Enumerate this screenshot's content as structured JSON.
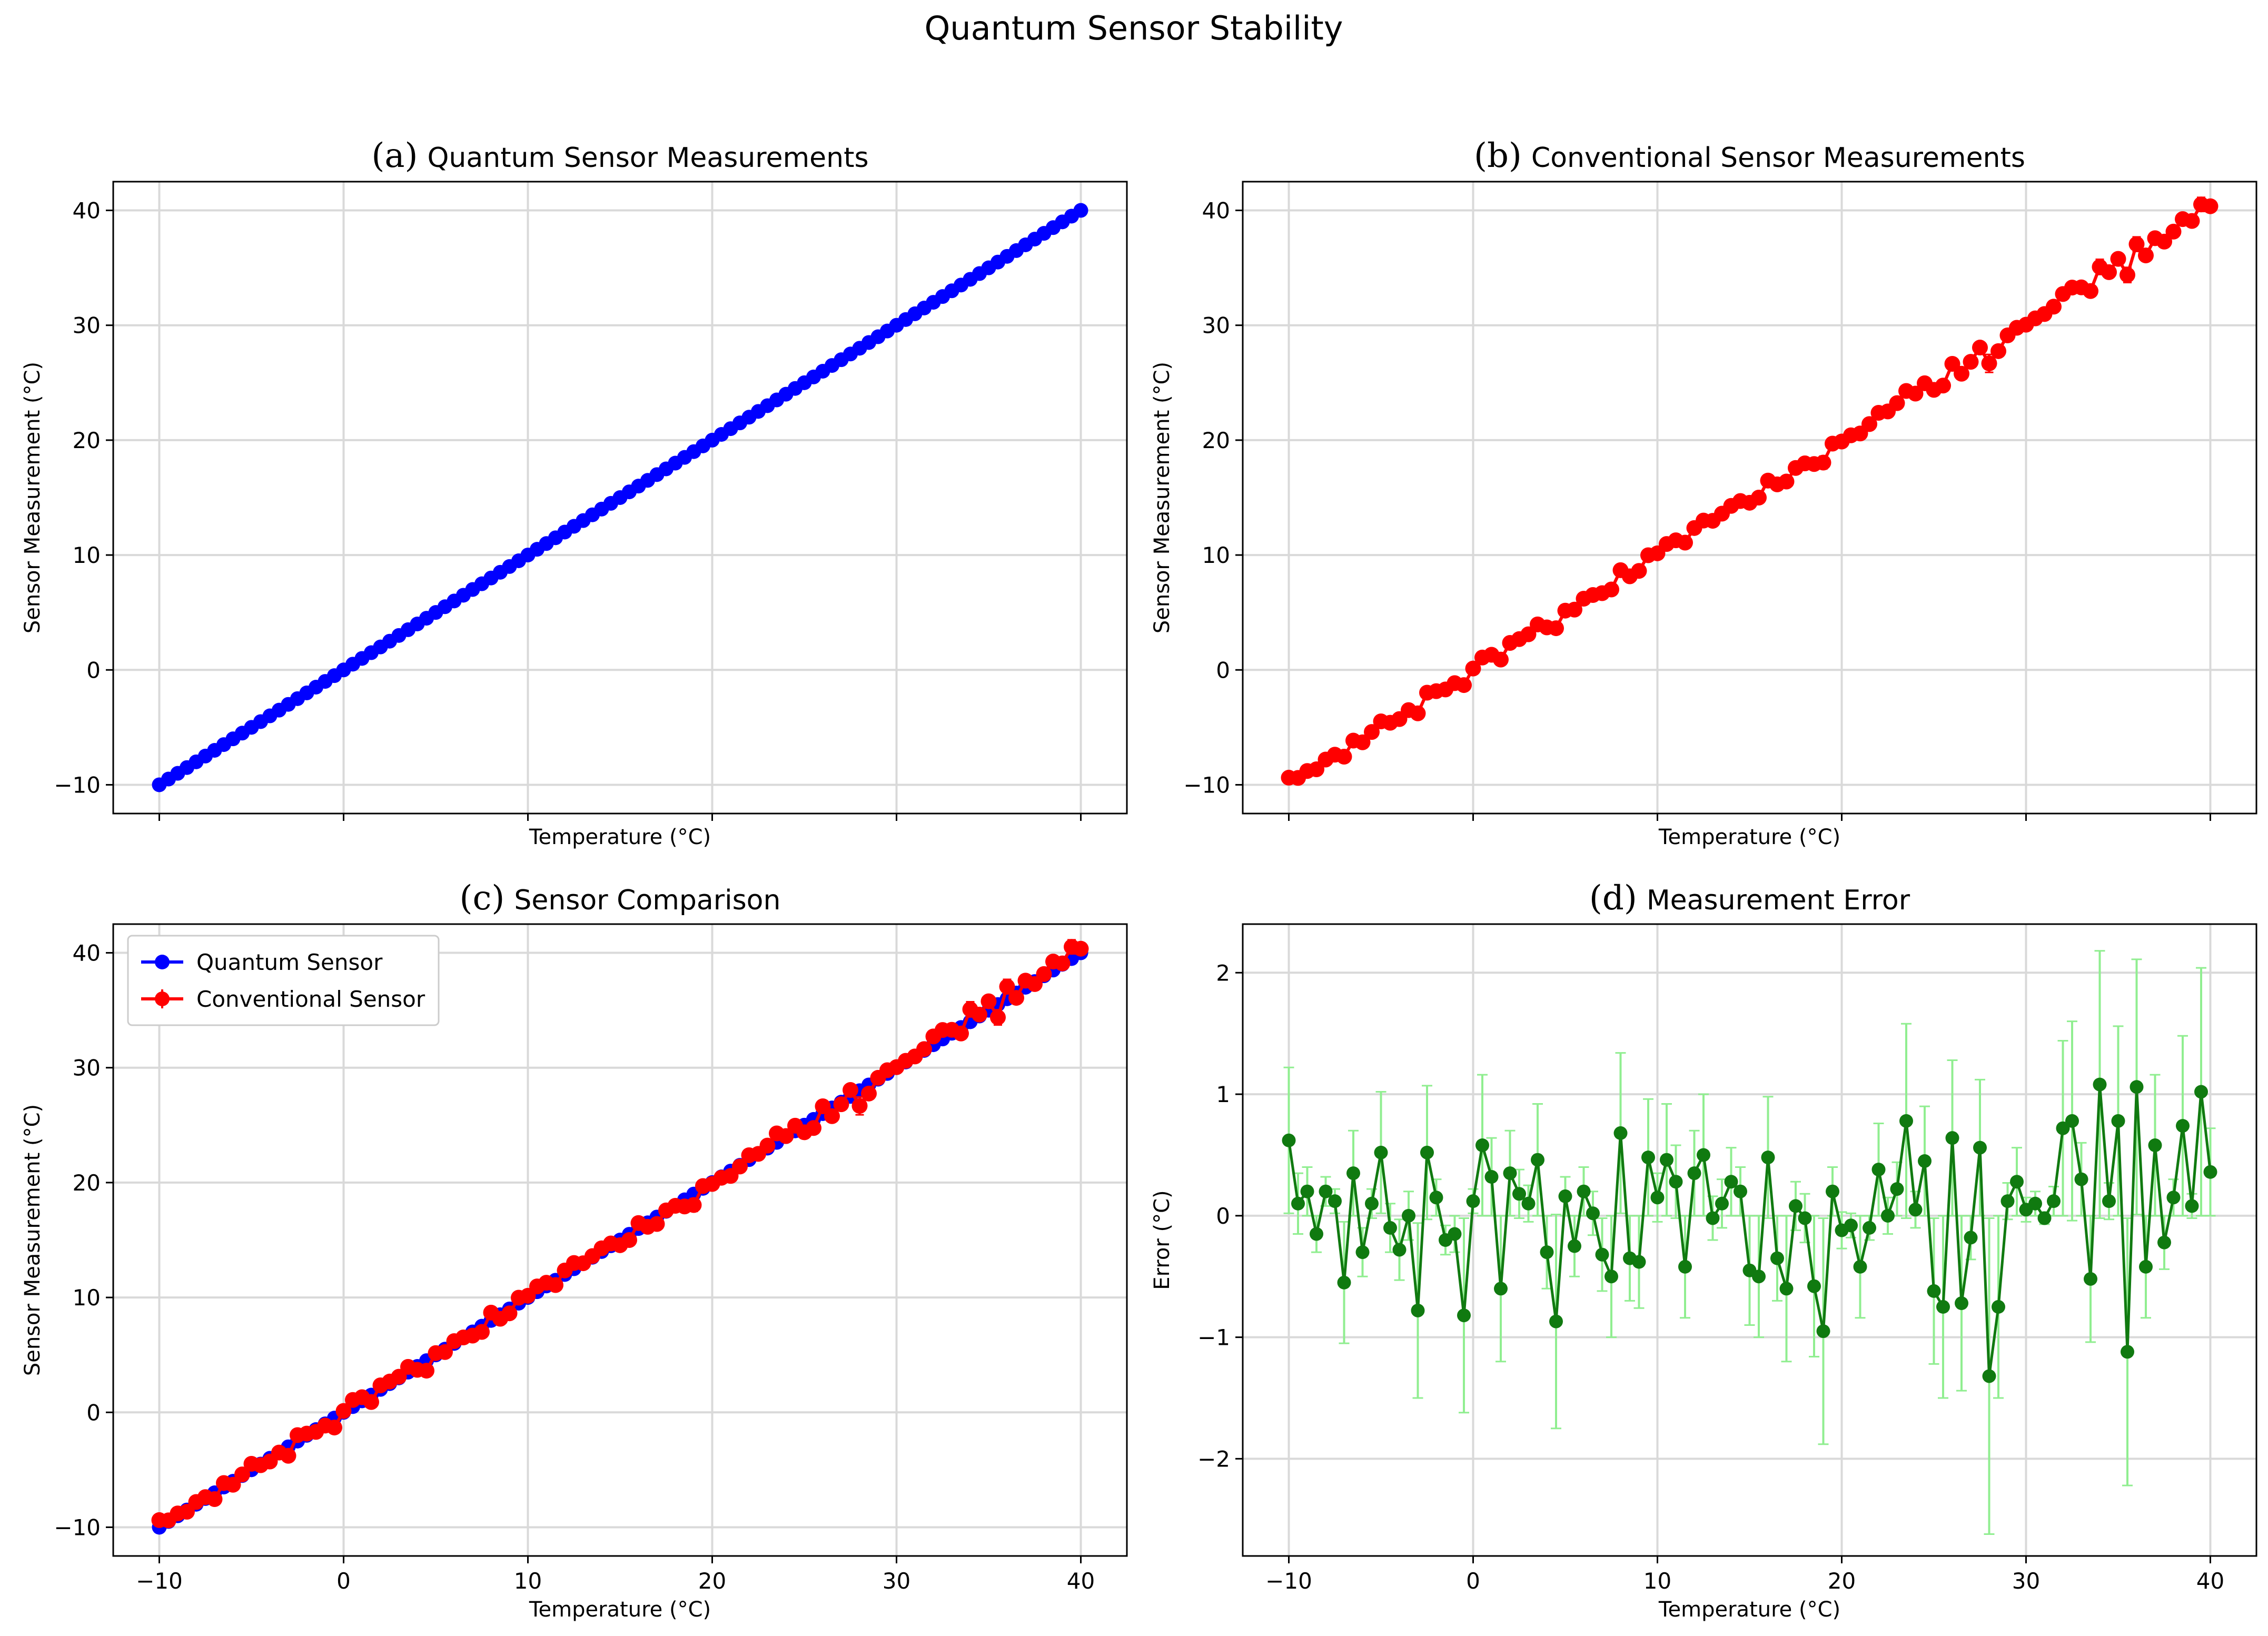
{
  "figure": {
    "suptitle": "Quantum Sensor Stability"
  },
  "colors": {
    "quantum": "#0000ff",
    "conventional": "#ff0000",
    "error_line": "#107a10",
    "error_bar": "#90ee90",
    "grid": "#d9d9d9"
  },
  "chart_data": [
    {
      "id": "a",
      "type": "line",
      "letter": "(a)",
      "title": "Quantum Sensor Measurements",
      "xlabel": "Temperature (°C)",
      "ylabel": "Sensor Measurement (°C)",
      "xlim": [
        -12.5,
        42.5
      ],
      "ylim": [
        -12.5,
        42.5
      ],
      "xticks": [
        -10,
        0,
        10,
        20,
        30,
        40
      ],
      "yticks": [
        -10,
        0,
        10,
        20,
        30,
        40
      ],
      "show_xtick_labels": false,
      "grid": true,
      "series": [
        {
          "key": "quantum",
          "x_range": [
            -10,
            40
          ],
          "points": 100,
          "y": "equal to x",
          "error": 0,
          "marker": "circle",
          "color": "#0000ff"
        }
      ]
    },
    {
      "id": "b",
      "type": "line",
      "letter": "(b)",
      "title": "Conventional Sensor Measurements",
      "xlabel": "Temperature (°C)",
      "ylabel": "Sensor Measurement (°C)",
      "xlim": [
        -12.5,
        42.5
      ],
      "ylim": [
        -12.5,
        42.5
      ],
      "xticks": [
        -10,
        0,
        10,
        20,
        30,
        40
      ],
      "yticks": [
        -10,
        0,
        10,
        20,
        30,
        40
      ],
      "show_xtick_labels": false,
      "grid": true,
      "series": [
        {
          "key": "conventional",
          "y": "x + measurement error (see panel d)",
          "marker": "circle",
          "color": "#ff0000"
        }
      ]
    },
    {
      "id": "c",
      "type": "line",
      "letter": "(c)",
      "title": "Sensor Comparison",
      "xlabel": "Temperature (°C)",
      "ylabel": "Sensor Measurement (°C)",
      "xlim": [
        -12.5,
        42.5
      ],
      "ylim": [
        -12.5,
        42.5
      ],
      "xticks": [
        -10,
        0,
        10,
        20,
        30,
        40
      ],
      "yticks": [
        -10,
        0,
        10,
        20,
        30,
        40
      ],
      "show_xtick_labels": true,
      "grid": true,
      "legend": {
        "position": "upper-left",
        "entries": [
          "Quantum Sensor",
          "Conventional Sensor"
        ]
      },
      "series": [
        {
          "name": "Quantum Sensor",
          "key": "quantum",
          "color": "#0000ff"
        },
        {
          "name": "Conventional Sensor",
          "key": "conventional",
          "color": "#ff0000"
        }
      ]
    },
    {
      "id": "d",
      "type": "line",
      "letter": "(d)",
      "title": "Measurement Error",
      "xlabel": "Temperature (°C)",
      "ylabel": "Error (°C)",
      "xlim": [
        -12.5,
        42.5
      ],
      "ylim": [
        -2.8,
        2.4
      ],
      "xticks": [
        -10,
        0,
        10,
        20,
        30,
        40
      ],
      "yticks": [
        -2,
        -1,
        0,
        1,
        2
      ],
      "show_xtick_labels": true,
      "grid": true,
      "series": [
        {
          "key": "error",
          "color": "#107a10",
          "errorbar_color": "#90ee90",
          "x": [
            -10.0,
            -9.5,
            -9.0,
            -8.5,
            -8.0,
            -7.5,
            -7.0,
            -6.5,
            -6.0,
            -5.5,
            -5.0,
            -4.5,
            -4.0,
            -3.5,
            -3.0,
            -2.5,
            -2.0,
            -1.5,
            -1.0,
            -0.5,
            0.0,
            0.5,
            1.0,
            1.5,
            2.0,
            2.5,
            3.0,
            3.5,
            4.0,
            4.5,
            5.0,
            5.5,
            6.0,
            6.5,
            7.0,
            7.5,
            8.0,
            8.5,
            9.0,
            9.5,
            10.0,
            10.5,
            11.0,
            11.5,
            12.0,
            12.5,
            13.0,
            13.5,
            14.0,
            14.5,
            15.0,
            15.5,
            16.0,
            16.5,
            17.0,
            17.5,
            18.0,
            18.5,
            19.0,
            19.5,
            20.0,
            20.5,
            21.0,
            21.5,
            22.0,
            22.5,
            23.0,
            23.5,
            24.0,
            24.5,
            25.0,
            25.5,
            26.0,
            26.5,
            27.0,
            27.5,
            28.0,
            28.5,
            29.0,
            29.5,
            30.0,
            30.5,
            31.0,
            31.5,
            32.0,
            32.5,
            33.0,
            33.5,
            34.0,
            34.5,
            35.0,
            35.5,
            36.0,
            36.5,
            37.0,
            37.5,
            38.0,
            38.5,
            39.0,
            39.5,
            40.0
          ],
          "values": [
            0.62,
            0.1,
            0.2,
            -0.15,
            0.2,
            0.12,
            -0.55,
            0.35,
            -0.3,
            0.1,
            0.52,
            -0.1,
            -0.28,
            0.0,
            -0.78,
            0.52,
            0.15,
            -0.2,
            -0.15,
            -0.82,
            0.12,
            0.58,
            0.32,
            -0.6,
            0.35,
            0.18,
            0.1,
            0.46,
            -0.3,
            -0.87,
            0.16,
            -0.25,
            0.2,
            0.02,
            -0.32,
            -0.5,
            0.68,
            -0.35,
            -0.38,
            0.48,
            0.15,
            0.46,
            0.28,
            -0.42,
            0.35,
            0.5,
            -0.02,
            0.1,
            0.28,
            0.2,
            -0.45,
            -0.5,
            0.48,
            -0.35,
            -0.6,
            0.08,
            -0.02,
            -0.58,
            -0.95,
            0.2,
            -0.12,
            -0.08,
            -0.42,
            -0.1,
            0.38,
            0.0,
            0.22,
            0.78,
            0.05,
            0.45,
            -0.62,
            -0.75,
            0.64,
            -0.72,
            -0.18,
            0.56,
            -1.32,
            -0.75,
            0.12,
            0.28,
            0.05,
            0.1,
            -0.02,
            0.12,
            0.72,
            0.78,
            0.3,
            -0.52,
            1.08,
            0.12,
            0.78,
            -1.12,
            1.06,
            -0.42,
            0.58,
            -0.22,
            0.15,
            0.74,
            0.08,
            1.02,
            0.36
          ],
          "errors": [
            0.6,
            0.25,
            0.2,
            0.15,
            0.12,
            0.1,
            0.5,
            0.35,
            0.2,
            0.12,
            0.5,
            0.2,
            0.25,
            0.2,
            0.72,
            0.55,
            0.15,
            0.12,
            0.15,
            0.8,
            0.1,
            0.58,
            0.32,
            0.6,
            0.35,
            0.2,
            0.15,
            0.46,
            0.3,
            0.88,
            0.16,
            0.25,
            0.2,
            0.18,
            0.3,
            0.5,
            0.66,
            0.35,
            0.38,
            0.48,
            0.2,
            0.46,
            0.3,
            0.42,
            0.35,
            0.5,
            0.18,
            0.2,
            0.28,
            0.2,
            0.45,
            0.5,
            0.5,
            0.35,
            0.6,
            0.2,
            0.2,
            0.58,
            0.93,
            0.2,
            0.15,
            0.1,
            0.42,
            0.1,
            0.38,
            0.15,
            0.22,
            0.8,
            0.15,
            0.45,
            0.6,
            0.75,
            0.64,
            0.72,
            0.18,
            0.56,
            1.3,
            0.75,
            0.15,
            0.28,
            0.1,
            0.1,
            0.05,
            0.12,
            0.72,
            0.82,
            0.3,
            0.52,
            1.1,
            0.15,
            0.78,
            1.1,
            1.05,
            0.42,
            0.58,
            0.22,
            0.15,
            0.74,
            0.1,
            1.02,
            0.36
          ]
        }
      ]
    }
  ]
}
